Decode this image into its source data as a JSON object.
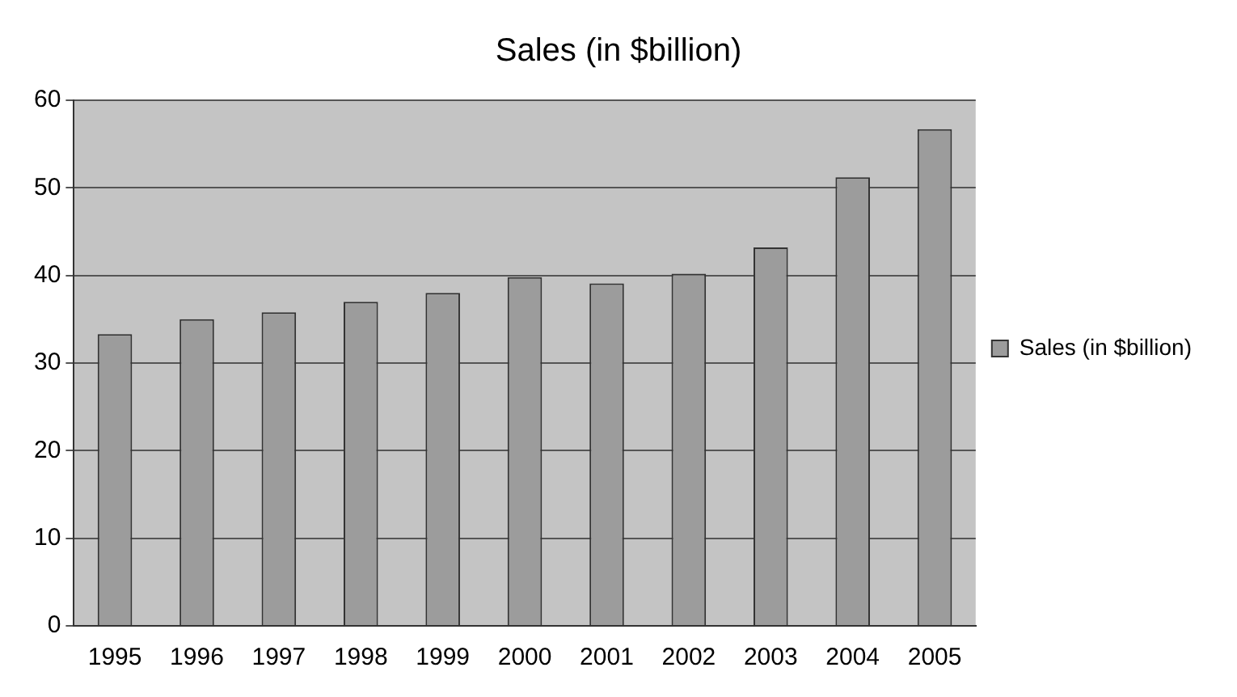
{
  "chart_data": {
    "type": "bar",
    "title": "Sales (in $billion)",
    "categories": [
      "1995",
      "1996",
      "1997",
      "1998",
      "1999",
      "2000",
      "2001",
      "2002",
      "2003",
      "2004",
      "2005"
    ],
    "series": [
      {
        "name": "Sales (in $billion)",
        "color": "#9c9c9c",
        "values": [
          33.3,
          35.0,
          35.8,
          37.0,
          38.0,
          39.8,
          39.1,
          40.2,
          43.2,
          51.2,
          56.7
        ]
      }
    ],
    "ylim": [
      0,
      60
    ],
    "yticks": [
      0,
      10,
      20,
      30,
      40,
      50,
      60
    ],
    "grid": "y",
    "legend": "right"
  }
}
